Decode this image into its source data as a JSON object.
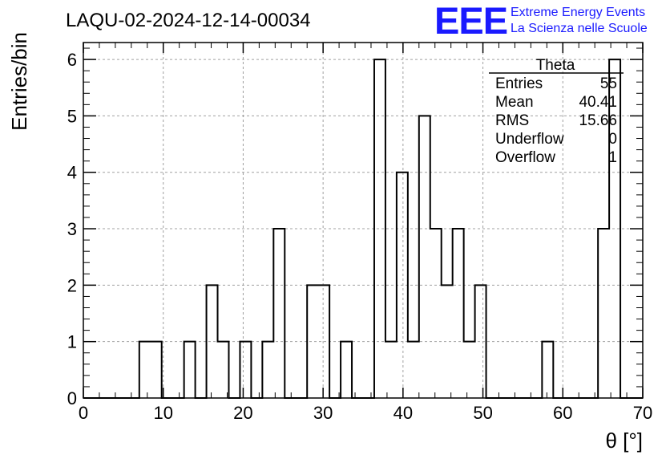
{
  "header": {
    "run_title": "LAQU-02-2024-12-14-00034",
    "logo_letters": "EEE",
    "brand_line1": "Extreme Energy Events",
    "brand_line2": "La Scienza nelle Scuole"
  },
  "stats_box": {
    "title": "Theta",
    "rows": [
      {
        "label": "Entries",
        "value": "55"
      },
      {
        "label": "Mean",
        "value": "40.41"
      },
      {
        "label": "RMS",
        "value": "15.66"
      },
      {
        "label": "Underflow",
        "value": "0"
      },
      {
        "label": "Overflow",
        "value": "1"
      }
    ]
  },
  "colors": {
    "brand": "#1a1aff",
    "histogram": "#000000",
    "grid": "#a0a0a0"
  },
  "chart_data": {
    "type": "histogram",
    "xlabel": "θ [°]",
    "ylabel": "Entries/bin",
    "xlim": [
      0,
      70
    ],
    "ylim": [
      0,
      6.3
    ],
    "x_ticks": [
      0,
      10,
      20,
      30,
      40,
      50,
      60,
      70
    ],
    "y_ticks": [
      0,
      1,
      2,
      3,
      4,
      5,
      6
    ],
    "grid": true,
    "bin_width": 1.4,
    "bin_start": 0,
    "counts": [
      0,
      0,
      0,
      0,
      0,
      1,
      1,
      0,
      0,
      1,
      0,
      2,
      1,
      0,
      1,
      0,
      1,
      3,
      0,
      0,
      2,
      2,
      0,
      1,
      0,
      0,
      6,
      1,
      4,
      1,
      5,
      3,
      2,
      3,
      1,
      2,
      0,
      0,
      0,
      0,
      0,
      1,
      0,
      0,
      0,
      0,
      3,
      6,
      0,
      0
    ]
  }
}
